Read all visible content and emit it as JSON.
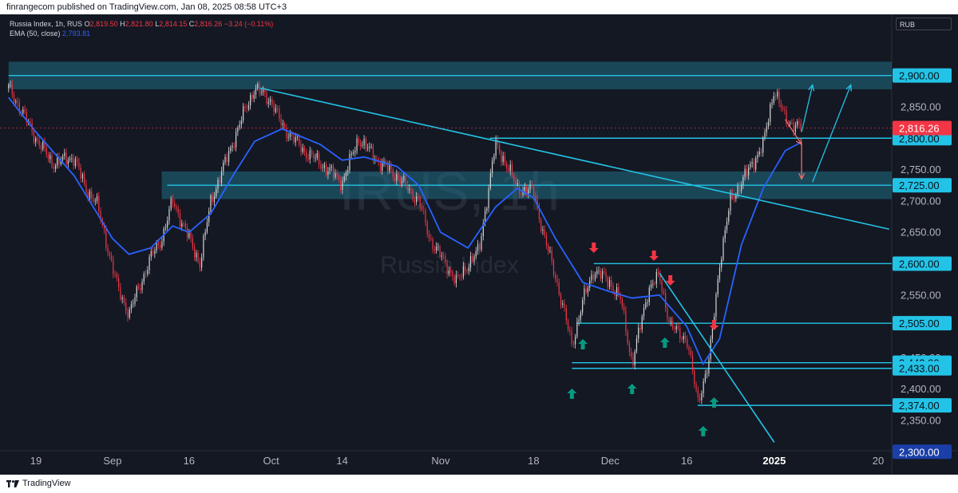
{
  "header": {
    "published_text": "finrangecom published on TradingView.com, Jan 08, 2025 08:58 UTC+3"
  },
  "legend": {
    "symbol_line": "Russia Index, 1h, RUS",
    "o_label": "O",
    "o_value": "2,819.50",
    "h_label": "H",
    "h_value": "2,821.80",
    "l_label": "L",
    "l_value": "2,814.15",
    "c_label": "C",
    "c_value": "2,816.26",
    "change": "−3.24 (−0.11%)",
    "ema_label": "EMA (50, close)",
    "ema_value": "2,793.81"
  },
  "currency_badge": "RUB",
  "watermark": {
    "symbol": "IRUS, 1h",
    "name": "Russia Index"
  },
  "footer": {
    "brand": "TradingView"
  },
  "colors": {
    "background": "#141823",
    "level_line": "#22c3e6",
    "zone_fill": "#1f6f85",
    "ema": "#2962ff",
    "up_candle": "#d6d6d6",
    "down_candle": "#f23645",
    "up_arrow": "#089981",
    "down_arrow": "#f23645",
    "current_price_bg": "#f23645",
    "level_label_bg": "#22c3e6",
    "highlight_label_bg": "#1a3fa8"
  },
  "chart_data": {
    "type": "candlestick",
    "symbol": "IRUS",
    "timeframe": "1h",
    "ylim": [
      2322,
      2925
    ],
    "x_tick_labels": [
      {
        "label": "19",
        "date": "2024-08-19"
      },
      {
        "label": "Sep",
        "date": "2024-09-02"
      },
      {
        "label": "16",
        "date": "2024-09-16"
      },
      {
        "label": "Oct",
        "date": "2024-10-01"
      },
      {
        "label": "14",
        "date": "2024-10-14"
      },
      {
        "label": "Nov",
        "date": "2024-11-01"
      },
      {
        "label": "18",
        "date": "2024-11-18"
      },
      {
        "label": "Dec",
        "date": "2024-12-02"
      },
      {
        "label": "16",
        "date": "2024-12-16"
      },
      {
        "label": "2025",
        "date": "2025-01-01",
        "bold": true
      },
      {
        "label": "20",
        "date": "2025-01-20"
      }
    ],
    "y_tick_labels": [
      "2,850.00",
      "2,750.00",
      "2,700.00",
      "2,650.00",
      "2,550.00",
      "2,450.00",
      "2,400.00",
      "2,350.00"
    ],
    "y_tick_values": [
      2850,
      2750,
      2700,
      2650,
      2550,
      2450,
      2400,
      2350
    ],
    "price_path": [
      [
        "2024-08-14",
        2880
      ],
      [
        "2024-08-16",
        2850
      ],
      [
        "2024-08-19",
        2800
      ],
      [
        "2024-08-22",
        2760
      ],
      [
        "2024-08-26",
        2770
      ],
      [
        "2024-08-28",
        2720
      ],
      [
        "2024-08-30",
        2700
      ],
      [
        "2024-09-03",
        2560
      ],
      [
        "2024-09-05",
        2520
      ],
      [
        "2024-09-09",
        2610
      ],
      [
        "2024-09-11",
        2640
      ],
      [
        "2024-09-13",
        2700
      ],
      [
        "2024-09-16",
        2640
      ],
      [
        "2024-09-18",
        2600
      ],
      [
        "2024-09-20",
        2700
      ],
      [
        "2024-09-23",
        2770
      ],
      [
        "2024-09-26",
        2840
      ],
      [
        "2024-09-28",
        2880
      ],
      [
        "2024-10-01",
        2860
      ],
      [
        "2024-10-03",
        2820
      ],
      [
        "2024-10-07",
        2780
      ],
      [
        "2024-10-10",
        2760
      ],
      [
        "2024-10-14",
        2730
      ],
      [
        "2024-10-17",
        2800
      ],
      [
        "2024-10-21",
        2760
      ],
      [
        "2024-10-24",
        2740
      ],
      [
        "2024-10-28",
        2700
      ],
      [
        "2024-10-30",
        2640
      ],
      [
        "2024-11-04",
        2570
      ],
      [
        "2024-11-06",
        2600
      ],
      [
        "2024-11-08",
        2620
      ],
      [
        "2024-11-11",
        2790
      ],
      [
        "2024-11-13",
        2760
      ],
      [
        "2024-11-15",
        2720
      ],
      [
        "2024-11-18",
        2715
      ],
      [
        "2024-11-20",
        2640
      ],
      [
        "2024-11-22",
        2580
      ],
      [
        "2024-11-25",
        2470
      ],
      [
        "2024-11-27",
        2540
      ],
      [
        "2024-11-29",
        2590
      ],
      [
        "2024-12-02",
        2570
      ],
      [
        "2024-12-04",
        2540
      ],
      [
        "2024-12-06",
        2440
      ],
      [
        "2024-12-09",
        2560
      ],
      [
        "2024-12-11",
        2580
      ],
      [
        "2024-12-13",
        2500
      ],
      [
        "2024-12-16",
        2480
      ],
      [
        "2024-12-18",
        2380
      ],
      [
        "2024-12-20",
        2440
      ],
      [
        "2024-12-22",
        2600
      ],
      [
        "2024-12-24",
        2700
      ],
      [
        "2024-12-26",
        2730
      ],
      [
        "2024-12-28",
        2760
      ],
      [
        "2024-12-30",
        2790
      ],
      [
        "2025-01-01",
        2880
      ],
      [
        "2025-01-03",
        2830
      ],
      [
        "2025-01-06",
        2816
      ]
    ],
    "ema50_path": [
      [
        "2024-08-14",
        2865
      ],
      [
        "2024-08-19",
        2810
      ],
      [
        "2024-08-26",
        2740
      ],
      [
        "2024-09-02",
        2640
      ],
      [
        "2024-09-05",
        2615
      ],
      [
        "2024-09-09",
        2625
      ],
      [
        "2024-09-13",
        2660
      ],
      [
        "2024-09-16",
        2650
      ],
      [
        "2024-09-20",
        2680
      ],
      [
        "2024-09-24",
        2740
      ],
      [
        "2024-09-28",
        2795
      ],
      [
        "2024-10-03",
        2815
      ],
      [
        "2024-10-10",
        2790
      ],
      [
        "2024-10-14",
        2765
      ],
      [
        "2024-10-18",
        2770
      ],
      [
        "2024-10-24",
        2755
      ],
      [
        "2024-10-28",
        2725
      ],
      [
        "2024-11-01",
        2650
      ],
      [
        "2024-11-06",
        2625
      ],
      [
        "2024-11-11",
        2690
      ],
      [
        "2024-11-15",
        2720
      ],
      [
        "2024-11-18",
        2705
      ],
      [
        "2024-11-22",
        2640
      ],
      [
        "2024-11-27",
        2570
      ],
      [
        "2024-12-02",
        2555
      ],
      [
        "2024-12-06",
        2545
      ],
      [
        "2024-12-11",
        2550
      ],
      [
        "2024-12-16",
        2500
      ],
      [
        "2024-12-19",
        2440
      ],
      [
        "2024-12-22",
        2480
      ],
      [
        "2024-12-26",
        2630
      ],
      [
        "2024-12-30",
        2720
      ],
      [
        "2025-01-03",
        2780
      ],
      [
        "2025-01-06",
        2794
      ]
    ],
    "horizontal_levels": [
      {
        "value": 2900,
        "label": "2,900.00",
        "from": "2024-08-14",
        "style": "zone"
      },
      {
        "value": 2800,
        "label": "2,800.00",
        "from": "2024-11-10"
      },
      {
        "value": 2725,
        "label": "2,725.00",
        "from": "2024-09-12",
        "style": "zone"
      },
      {
        "value": 2600,
        "label": "2,600.00",
        "from": "2024-11-29"
      },
      {
        "value": 2505,
        "label": "2,505.00",
        "from": "2024-11-26"
      },
      {
        "value": 2442,
        "label": "2,442.00",
        "from": "2024-11-25"
      },
      {
        "value": 2433,
        "label": "2,433.00",
        "from": "2024-11-25"
      },
      {
        "value": 2374,
        "label": "2,374.00",
        "from": "2024-12-18"
      }
    ],
    "zones": [
      {
        "from_date": "2024-08-14",
        "low": 2878,
        "high": 2922
      },
      {
        "from_date": "2024-09-11",
        "low": 2703,
        "high": 2747
      }
    ],
    "trendlines": [
      {
        "from": [
          "2024-09-29",
          2880
        ],
        "to": [
          "2025-01-22",
          2655
        ]
      },
      {
        "from": [
          "2024-12-11",
          2585
        ],
        "to": [
          "2025-01-01",
          2315
        ]
      }
    ],
    "projection_arrows": [
      {
        "from": [
          "2025-01-03",
          2830
        ],
        "to": [
          "2025-01-06",
          2790
        ]
      },
      {
        "from": [
          "2025-01-06",
          2810
        ],
        "to": [
          "2025-01-08",
          2885
        ]
      },
      {
        "from": [
          "2025-01-06",
          2790
        ],
        "to": [
          "2025-01-06",
          2735
        ]
      },
      {
        "from": [
          "2025-01-08",
          2730
        ],
        "to": [
          "2025-01-15",
          2885
        ]
      }
    ],
    "up_markers": [
      "2024-11-25",
      "2024-11-27",
      "2024-12-06",
      "2024-12-12",
      "2024-12-19",
      "2024-12-21"
    ],
    "down_markers": [
      "2024-11-29",
      "2024-12-10",
      "2024-12-13",
      "2024-12-21"
    ],
    "current_price": {
      "value": 2816.26,
      "label": "2,816.26"
    },
    "highlight_label": {
      "value": 2300,
      "label": "2,300.00"
    }
  }
}
